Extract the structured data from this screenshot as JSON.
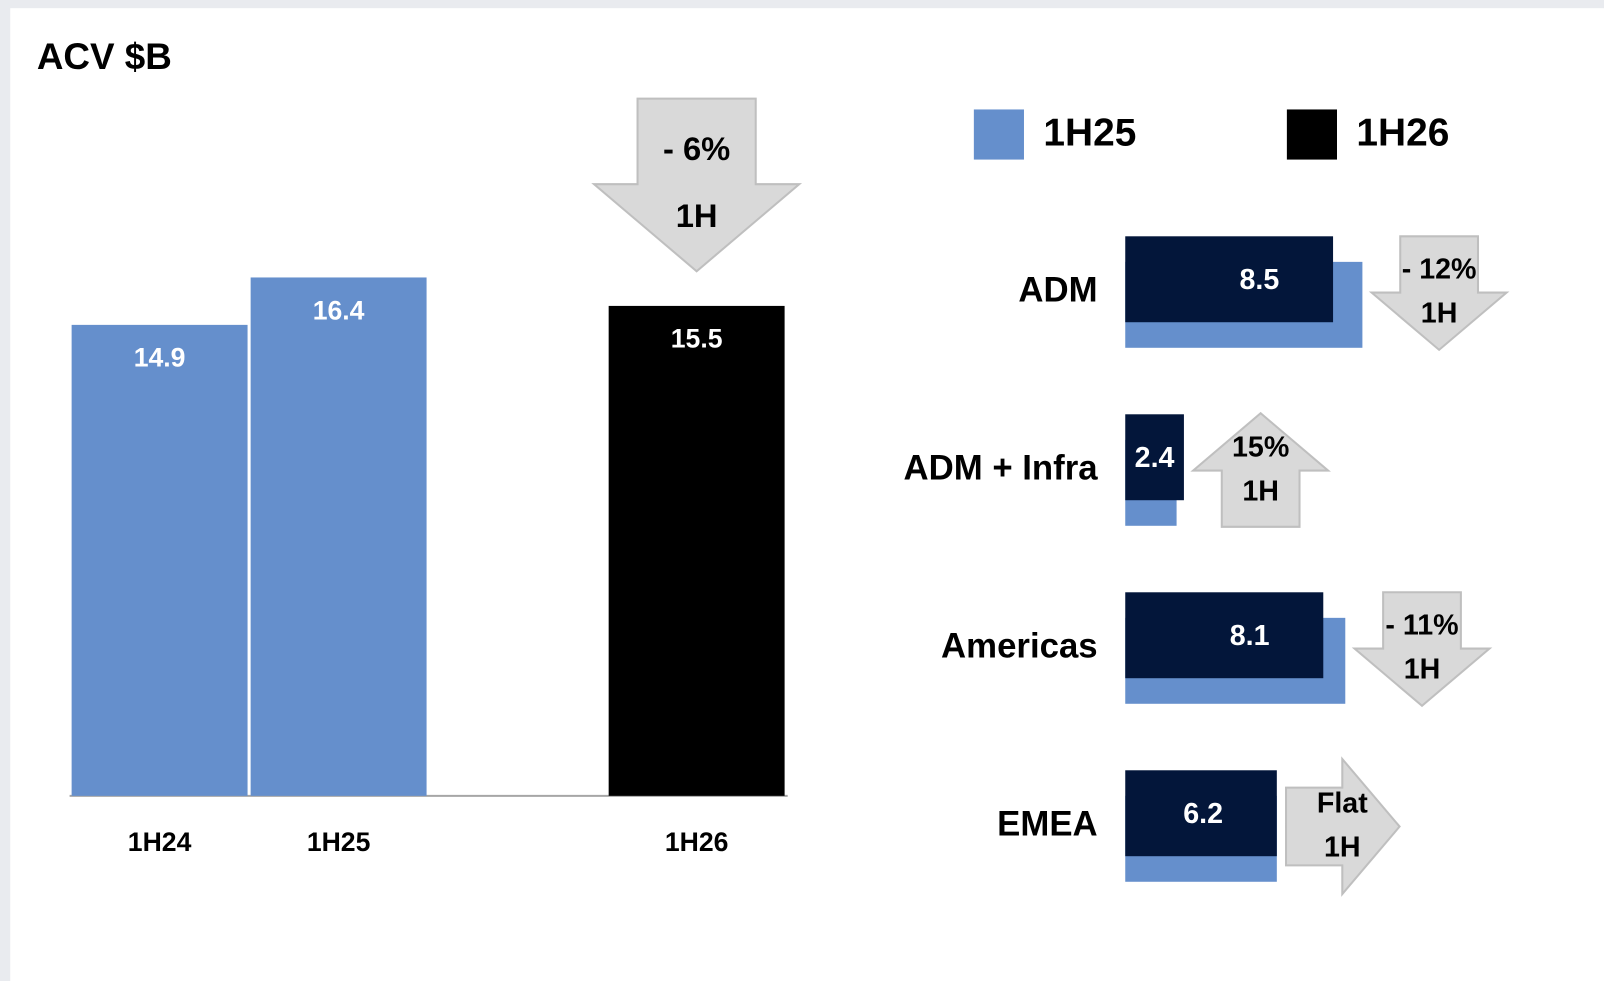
{
  "chart_data": [
    {
      "type": "bar",
      "title": "ACV $B",
      "categories": [
        "1H24",
        "1H25",
        null,
        "1H26"
      ],
      "values": [
        14.9,
        16.4,
        null,
        15.5
      ],
      "colors": [
        "#658fcc",
        "#658fcc",
        null,
        "#000000"
      ],
      "ylim": [
        0,
        25
      ],
      "legend": [
        {
          "name": "1H25",
          "color": "#658fcc"
        },
        {
          "name": "1H26",
          "color": "#000000"
        }
      ],
      "change": {
        "label": "- 6%",
        "period": "1H",
        "direction": "down"
      }
    },
    {
      "type": "hbar",
      "categories": [
        "ADM",
        "ADM + Infra",
        "Americas",
        "EMEA"
      ],
      "series": [
        {
          "color": "#658fcc",
          "values": [
            9.7,
            2.1,
            9.0,
            6.2
          ]
        },
        {
          "color": "#03163a",
          "values": [
            8.5,
            2.4,
            8.1,
            6.2
          ]
        }
      ],
      "xlim": [
        0,
        20
      ],
      "changes": [
        {
          "label": "- 12%",
          "period": "1H",
          "direction": "down"
        },
        {
          "label": "15%",
          "period": "1H",
          "direction": "up"
        },
        {
          "label": "- 11%",
          "period": "1H",
          "direction": "down"
        },
        {
          "label": "Flat",
          "period": "1H",
          "direction": "right"
        }
      ]
    }
  ]
}
